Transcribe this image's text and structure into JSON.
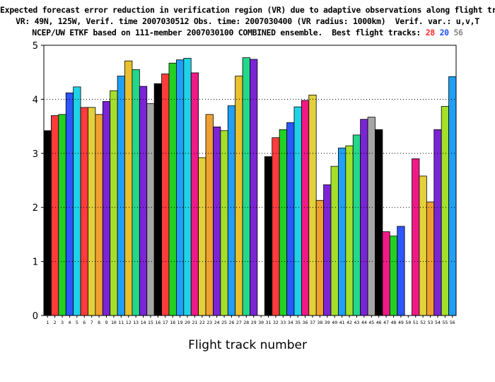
{
  "chart_data": {
    "type": "bar",
    "title_lines": [
      "Expected forecast error reduction in verification region (VR) due to adaptive observations along flight tracks.",
      "VR: 49N, 125W, Verif. time 2007030512 Obs. time: 2007030400 (VR radius: 1000km)  Verif. var.: u,v,T",
      "NCEP/UW ETKF based on 111-member 2007030100 COMBINED ensemble.  Best flight tracks:"
    ],
    "best_flight_tracks": [
      {
        "label": "28",
        "color": "#ff2a2a"
      },
      {
        "label": "20",
        "color": "#1e50ff"
      },
      {
        "label": "56",
        "color": "#888888"
      }
    ],
    "xlabel": "Flight track number",
    "ylabel": "",
    "ylim": [
      0,
      5
    ],
    "yticks": [
      "0",
      "1",
      "2",
      "3",
      "4",
      "5"
    ],
    "grid": "dotted horizontal at integer y values",
    "categories": [
      "1",
      "2",
      "3",
      "4",
      "5",
      "6",
      "7",
      "8",
      "9",
      "10",
      "11",
      "12",
      "13",
      "14",
      "15",
      "16",
      "17",
      "18",
      "19",
      "20",
      "21",
      "22",
      "23",
      "24",
      "25",
      "26",
      "27",
      "28",
      "29",
      "30",
      "31",
      "32",
      "33",
      "34",
      "35",
      "36",
      "37",
      "38",
      "39",
      "40",
      "41",
      "42",
      "43",
      "44",
      "45",
      "46",
      "47",
      "48",
      "49",
      "50",
      "51",
      "52",
      "53",
      "54",
      "55",
      "56"
    ],
    "values": [
      3.42,
      3.7,
      3.72,
      4.12,
      4.23,
      3.85,
      3.85,
      3.72,
      3.96,
      4.16,
      4.43,
      4.71,
      4.55,
      4.24,
      3.92,
      4.29,
      4.47,
      4.67,
      4.73,
      4.76,
      4.49,
      2.92,
      3.72,
      3.49,
      3.42,
      3.88,
      4.43,
      4.77,
      4.74,
      0,
      2.94,
      3.29,
      3.44,
      3.57,
      3.86,
      3.98,
      4.08,
      2.13,
      2.42,
      2.76,
      3.1,
      3.14,
      3.34,
      3.63,
      3.67,
      3.44,
      1.55,
      1.47,
      1.65,
      0,
      2.9,
      2.58,
      2.1,
      3.44,
      3.87,
      4.42
    ],
    "bar_colors": [
      "#000000",
      "#ff3b3b",
      "#22d122",
      "#2c56ff",
      "#1fd3e6",
      "#ff3b3b",
      "#e2d13a",
      "#f0a030",
      "#7a24d6",
      "#a4e02a",
      "#1f9ff5",
      "#eac12d",
      "#23d88b",
      "#7a24d6",
      "#a6a6a6",
      "#000000",
      "#ff3b3b",
      "#22d122",
      "#1f9ff5",
      "#1fd3e6",
      "#f01a86",
      "#e2d13a",
      "#f0a030",
      "#7a24d6",
      "#a4e02a",
      "#1f9ff5",
      "#eac12d",
      "#23d88b",
      "#7a24d6",
      "#ffffff",
      "#000000",
      "#ff3b3b",
      "#22d122",
      "#2c56ff",
      "#1fd3e6",
      "#f01a86",
      "#e2d13a",
      "#f0a030",
      "#7a24d6",
      "#a4e02a",
      "#1f9ff5",
      "#a4e02a",
      "#23d88b",
      "#7a24d6",
      "#a6a6a6",
      "#000000",
      "#f01a86",
      "#22d122",
      "#2c56ff",
      "#ffffff",
      "#f01a86",
      "#e2d13a",
      "#f0a030",
      "#7a24d6",
      "#a4e02a",
      "#1f9ff5"
    ]
  }
}
